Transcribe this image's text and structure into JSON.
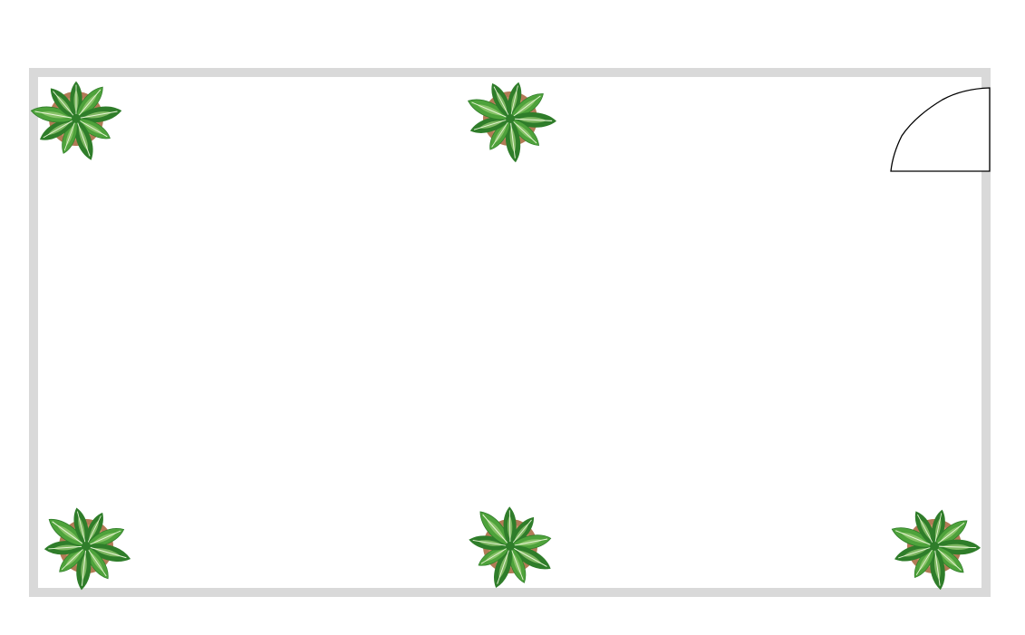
{
  "plan": {
    "wall_color": "#d9d9d9",
    "floor_color": "#ffffff",
    "door_stroke": "#000000",
    "plant_icon": "potted-plant-icon",
    "door_icon": "door-swing-icon",
    "plant_colors": {
      "pot": "#b27a56",
      "pot_rim": "#c98f68",
      "leaf_dark": "#2f7d2a",
      "leaf_mid": "#4ea23b",
      "leaf_light": "#9fd07a",
      "vein": "#e8f5d6"
    },
    "plant_count": 5
  }
}
